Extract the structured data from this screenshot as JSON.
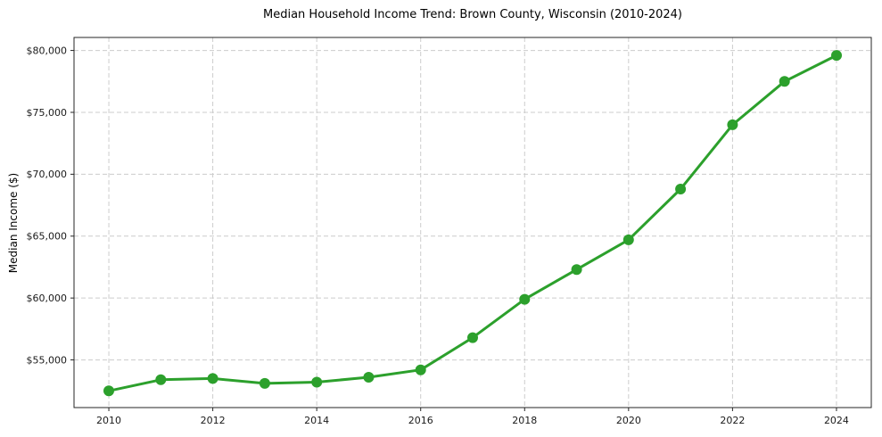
{
  "chart_data": {
    "type": "line",
    "title": "Median Household Income Trend: Brown County, Wisconsin (2010-2024)",
    "xlabel": "",
    "ylabel": "Median Income ($)",
    "series": [
      {
        "name": "Median Household Income",
        "x": [
          2010,
          2011,
          2012,
          2013,
          2014,
          2015,
          2016,
          2017,
          2018,
          2019,
          2020,
          2021,
          2022,
          2023,
          2024
        ],
        "values": [
          52500,
          53400,
          53500,
          53100,
          53200,
          53600,
          54200,
          56800,
          59900,
          62300,
          64700,
          68800,
          74000,
          77500,
          79600
        ]
      }
    ],
    "xlim": [
      2009.33,
      2024.67
    ],
    "ylim": [
      51150,
      81050
    ],
    "x_ticks": [
      2010,
      2012,
      2014,
      2016,
      2018,
      2020,
      2022,
      2024
    ],
    "x_tick_labels": [
      "2010",
      "2012",
      "2014",
      "2016",
      "2018",
      "2020",
      "2022",
      "2024"
    ],
    "y_ticks": [
      55000,
      60000,
      65000,
      70000,
      75000,
      80000
    ],
    "y_tick_labels": [
      "$55,000",
      "$60,000",
      "$65,000",
      "$70,000",
      "$75,000",
      "$80,000"
    ],
    "grid": "dashed, both axes",
    "legend_position": "none",
    "colors": {
      "line": "#2ca02c",
      "marker": "#2ca02c",
      "grid": "#cccccc",
      "spine": "#262626",
      "tick_text": "#1a1a1a",
      "background": "#ffffff"
    }
  }
}
